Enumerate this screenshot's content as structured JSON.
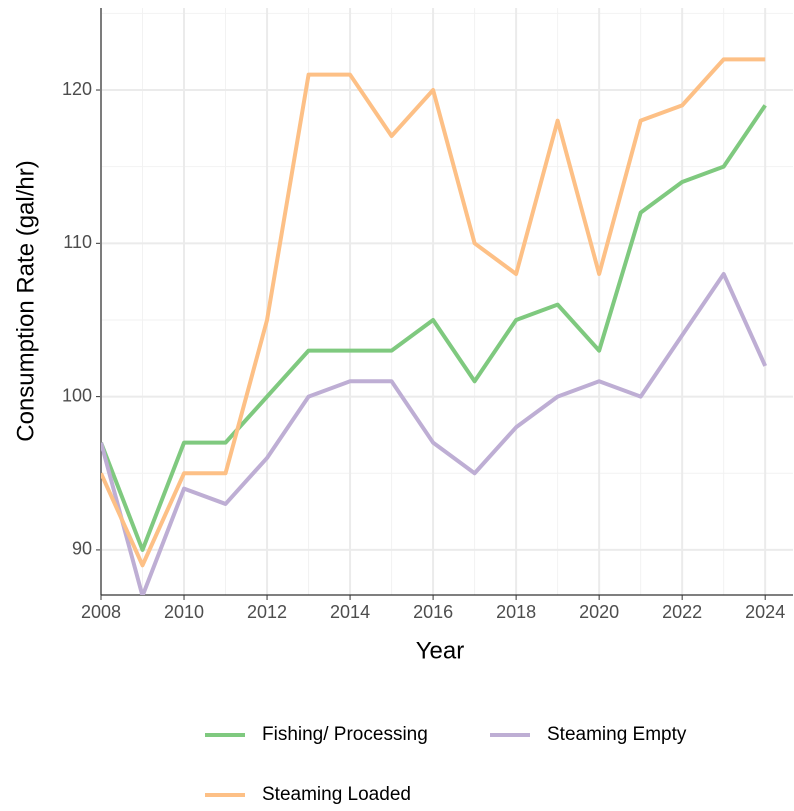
{
  "chart_data": {
    "type": "line",
    "x_label": "Year",
    "y_label": "Consumption Rate (gal/hr)",
    "x": [
      2008,
      2009,
      2010,
      2011,
      2012,
      2013,
      2014,
      2015,
      2016,
      2017,
      2018,
      2019,
      2020,
      2021,
      2022,
      2023,
      2024
    ],
    "series": [
      {
        "name": "Fishing/ Processing",
        "color": "#7fc97f",
        "values": [
          97,
          90,
          97,
          97,
          100,
          103,
          103,
          103,
          105,
          101,
          105,
          106,
          103,
          112,
          114,
          115,
          119
        ]
      },
      {
        "name": "Steaming Empty",
        "color": "#beaed4",
        "values": [
          97,
          87,
          94,
          93,
          96,
          100,
          101,
          101,
          97,
          95,
          98,
          100,
          101,
          100,
          104,
          108,
          102
        ]
      },
      {
        "name": "Steaming Loaded",
        "color": "#fdc086",
        "values": [
          95,
          89,
          95,
          95,
          105,
          121,
          121,
          117,
          120,
          110,
          108,
          118,
          108,
          118,
          119,
          122,
          122
        ]
      }
    ],
    "xlim": [
      2008,
      2024.67
    ],
    "xticks": [
      2008,
      2010,
      2012,
      2014,
      2016,
      2018,
      2020,
      2022,
      2024
    ],
    "ylim": [
      87.06,
      125.35
    ],
    "yticks": [
      90,
      100,
      110,
      120
    ],
    "grid": true,
    "legend": "bottom"
  }
}
